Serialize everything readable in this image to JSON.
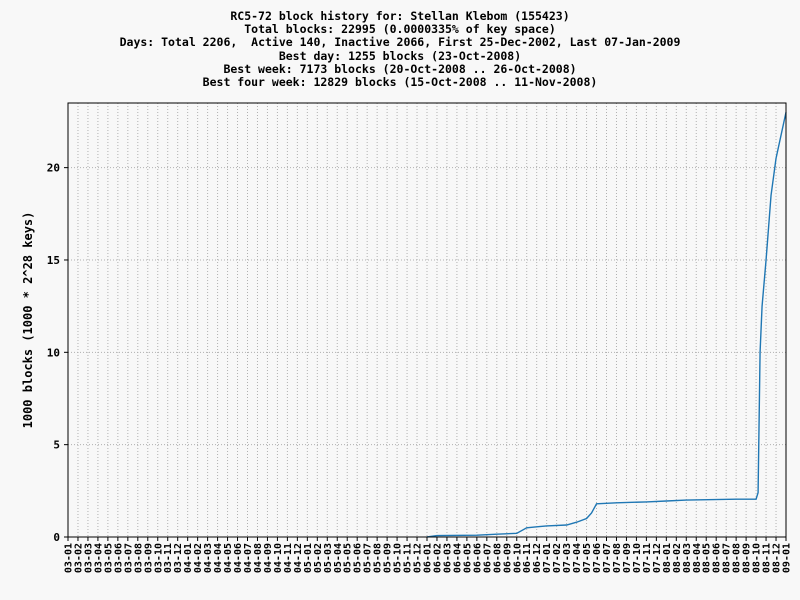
{
  "header": {
    "title": "RC5-72 block history for: Stellan Klebom (155423)",
    "total": "Total blocks: 22995 (0.0000335% of key space)",
    "days": "Days: Total 2206,  Active 140, Inactive 2066, First 25-Dec-2002, Last 07-Jan-2009",
    "best_day": "Best day: 1255 blocks (23-Oct-2008)",
    "best_week": "Best week: 7173 blocks (20-Oct-2008 .. 26-Oct-2008)",
    "best_four_week": "Best four week: 12829 blocks (15-Oct-2008 .. 11-Nov-2008)"
  },
  "chart_data": {
    "type": "line",
    "ylabel": "1000 blocks (1000 * 2^28 keys)",
    "xlabel": "",
    "ylim": [
      0,
      23.5
    ],
    "yticks": [
      0,
      5,
      10,
      15,
      20
    ],
    "grid": true,
    "x_tick_labels": [
      "03-01",
      "03-02",
      "03-03",
      "03-04",
      "03-05",
      "03-06",
      "03-07",
      "03-08",
      "03-09",
      "03-10",
      "03-11",
      "03-12",
      "04-01",
      "04-02",
      "04-03",
      "04-04",
      "04-05",
      "04-06",
      "04-07",
      "04-08",
      "04-09",
      "04-10",
      "04-11",
      "04-12",
      "05-01",
      "05-02",
      "05-03",
      "05-04",
      "05-05",
      "05-06",
      "05-07",
      "05-08",
      "05-09",
      "05-10",
      "05-11",
      "05-12",
      "06-01",
      "06-02",
      "06-03",
      "06-04",
      "06-05",
      "06-06",
      "06-07",
      "06-08",
      "06-09",
      "06-10",
      "06-11",
      "06-12",
      "07-01",
      "07-02",
      "07-03",
      "07-04",
      "07-05",
      "07-06",
      "07-07",
      "07-08",
      "07-09",
      "07-10",
      "07-11",
      "07-12",
      "08-01",
      "08-02",
      "08-03",
      "08-04",
      "08-05",
      "08-06",
      "08-07",
      "08-08",
      "08-09",
      "08-10",
      "08-11",
      "08-12",
      "09-01"
    ],
    "series": [
      {
        "color": "#1f77b4",
        "points": [
          [
            "06-01",
            0.0
          ],
          [
            "06-02",
            0.08
          ],
          [
            "06-06",
            0.1
          ],
          [
            "06-08",
            0.15
          ],
          [
            "06-10",
            0.2
          ],
          [
            "06-11",
            0.5
          ],
          [
            "06-12",
            0.55
          ],
          [
            "07-01",
            0.6
          ],
          [
            "07-03",
            0.65
          ],
          [
            "07-04",
            0.8
          ],
          [
            "07-05",
            1.0
          ],
          [
            "07-05.5",
            1.3
          ],
          [
            "07-06",
            1.8
          ],
          [
            "07-08",
            1.85
          ],
          [
            "07-11",
            1.9
          ],
          [
            "08-01",
            1.95
          ],
          [
            "08-03",
            2.0
          ],
          [
            "08-08",
            2.05
          ],
          [
            "08-10",
            2.05
          ],
          [
            "08-10.2",
            2.4
          ],
          [
            "08-10.4",
            10.0
          ],
          [
            "08-10.6",
            12.5
          ],
          [
            "08-11",
            15.0
          ],
          [
            "08-11.5",
            18.5
          ],
          [
            "08-12",
            20.5
          ],
          [
            "09-01",
            23.0
          ]
        ]
      }
    ]
  }
}
